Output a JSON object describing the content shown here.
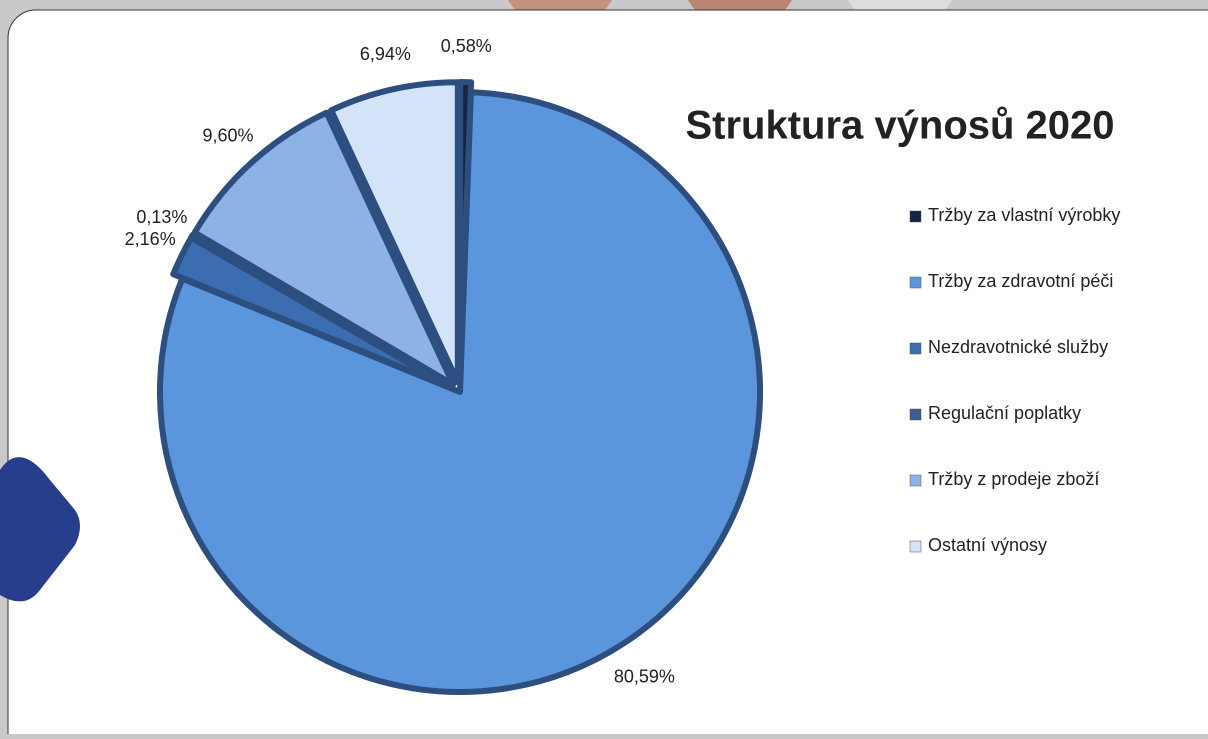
{
  "chart_data": {
    "type": "pie",
    "title": "Struktura výnosů 2020",
    "categories": [
      "Tržby za vlastní výrobky",
      "Tržby za zdravotní péči",
      "Nezdravotnické služby",
      "Regulační poplatky",
      "Tržby z prodeje zboží",
      "Ostatní výnosy"
    ],
    "values": [
      0.58,
      80.59,
      2.16,
      0.13,
      9.6,
      6.94
    ],
    "value_labels": [
      "0,58%",
      "80,59%",
      "2,16%",
      "0,13%",
      "9,60%",
      "6,94%"
    ],
    "colors": [
      "#15253f",
      "#5b96dc",
      "#3c6db0",
      "#3a5f90",
      "#8db3e6",
      "#d3e3f8"
    ],
    "legend": "right"
  }
}
